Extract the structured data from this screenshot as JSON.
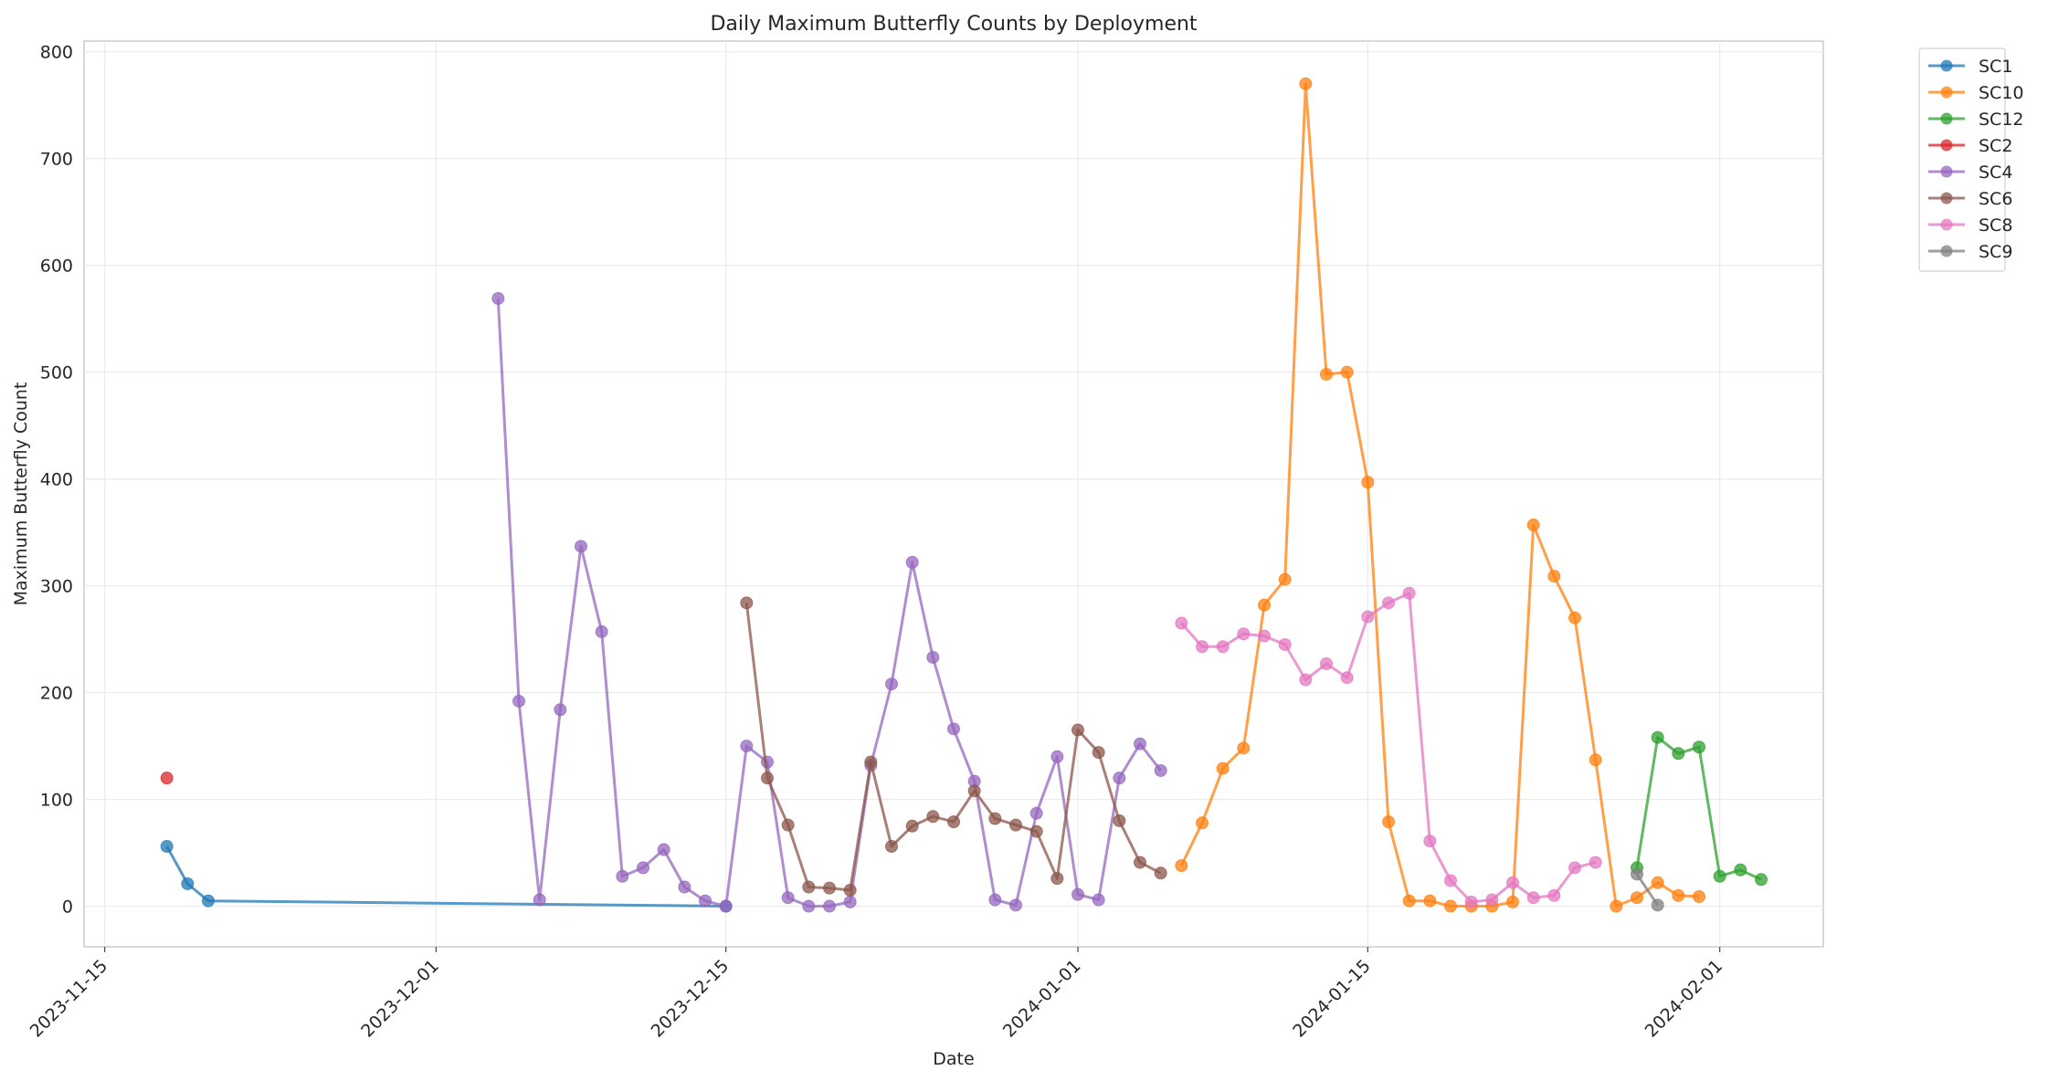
{
  "chart_data": {
    "type": "line",
    "title": "Daily Maximum Butterfly Counts by Deployment",
    "xlabel": "Date",
    "ylabel": "Maximum Butterfly Count",
    "x_type": "date",
    "xlim": [
      "2023-11-14",
      "2024-02-06"
    ],
    "ylim": [
      -38,
      810
    ],
    "y_ticks": [
      0,
      100,
      200,
      300,
      400,
      500,
      600,
      700,
      800
    ],
    "x_ticks": [
      "2023-11-15",
      "2023-12-01",
      "2023-12-15",
      "2024-01-01",
      "2024-01-15",
      "2024-02-01"
    ],
    "grid": true,
    "legend_position": "outside-top-right",
    "marker": "circle",
    "series": [
      {
        "name": "SC1",
        "color": "#1f77b4",
        "points": [
          [
            "2023-11-18",
            56
          ],
          [
            "2023-11-19",
            21
          ],
          [
            "2023-11-20",
            5
          ],
          [
            "2023-12-15",
            0
          ]
        ]
      },
      {
        "name": "SC10",
        "color": "#ff7f0e",
        "points": [
          [
            "2024-01-06",
            38
          ],
          [
            "2024-01-07",
            78
          ],
          [
            "2024-01-08",
            129
          ],
          [
            "2024-01-09",
            148
          ],
          [
            "2024-01-10",
            282
          ],
          [
            "2024-01-11",
            306
          ],
          [
            "2024-01-12",
            770
          ],
          [
            "2024-01-13",
            498
          ],
          [
            "2024-01-14",
            500
          ],
          [
            "2024-01-15",
            397
          ],
          [
            "2024-01-16",
            79
          ],
          [
            "2024-01-17",
            5
          ],
          [
            "2024-01-18",
            5
          ],
          [
            "2024-01-19",
            0
          ],
          [
            "2024-01-20",
            0
          ],
          [
            "2024-01-21",
            0
          ],
          [
            "2024-01-22",
            4
          ],
          [
            "2024-01-23",
            357
          ],
          [
            "2024-01-24",
            309
          ],
          [
            "2024-01-25",
            270
          ],
          [
            "2024-01-26",
            137
          ],
          [
            "2024-01-27",
            0
          ],
          [
            "2024-01-28",
            8
          ],
          [
            "2024-01-29",
            22
          ],
          [
            "2024-01-30",
            10
          ],
          [
            "2024-01-31",
            9
          ]
        ]
      },
      {
        "name": "SC12",
        "color": "#2ca02c",
        "points": [
          [
            "2024-01-28",
            36
          ],
          [
            "2024-01-29",
            158
          ],
          [
            "2024-01-30",
            143
          ],
          [
            "2024-01-31",
            149
          ],
          [
            "2024-02-01",
            28
          ],
          [
            "2024-02-02",
            34
          ],
          [
            "2024-02-03",
            25
          ]
        ]
      },
      {
        "name": "SC2",
        "color": "#d62728",
        "points": [
          [
            "2023-11-18",
            120
          ]
        ]
      },
      {
        "name": "SC4",
        "color": "#9467bd",
        "points": [
          [
            "2023-12-04",
            569
          ],
          [
            "2023-12-05",
            192
          ],
          [
            "2023-12-06",
            6
          ],
          [
            "2023-12-07",
            184
          ],
          [
            "2023-12-08",
            337
          ],
          [
            "2023-12-09",
            257
          ],
          [
            "2023-12-10",
            28
          ],
          [
            "2023-12-11",
            36
          ],
          [
            "2023-12-12",
            53
          ],
          [
            "2023-12-13",
            18
          ],
          [
            "2023-12-14",
            5
          ],
          [
            "2023-12-15",
            0
          ],
          [
            "2023-12-16",
            150
          ],
          [
            "2023-12-17",
            135
          ],
          [
            "2023-12-18",
            8
          ],
          [
            "2023-12-19",
            0
          ],
          [
            "2023-12-20",
            0
          ],
          [
            "2023-12-21",
            4
          ],
          [
            "2023-12-22",
            132
          ],
          [
            "2023-12-23",
            208
          ],
          [
            "2023-12-24",
            322
          ],
          [
            "2023-12-25",
            233
          ],
          [
            "2023-12-26",
            166
          ],
          [
            "2023-12-27",
            117
          ],
          [
            "2023-12-28",
            6
          ],
          [
            "2023-12-29",
            1
          ],
          [
            "2023-12-30",
            87
          ],
          [
            "2023-12-31",
            140
          ],
          [
            "2024-01-01",
            11
          ],
          [
            "2024-01-02",
            6
          ],
          [
            "2024-01-03",
            120
          ],
          [
            "2024-01-04",
            152
          ],
          [
            "2024-01-05",
            127
          ]
        ]
      },
      {
        "name": "SC6",
        "color": "#8c564b",
        "points": [
          [
            "2023-12-16",
            284
          ],
          [
            "2023-12-17",
            120
          ],
          [
            "2023-12-18",
            76
          ],
          [
            "2023-12-19",
            18
          ],
          [
            "2023-12-20",
            17
          ],
          [
            "2023-12-21",
            15
          ],
          [
            "2023-12-22",
            135
          ],
          [
            "2023-12-23",
            56
          ],
          [
            "2023-12-24",
            75
          ],
          [
            "2023-12-25",
            84
          ],
          [
            "2023-12-26",
            79
          ],
          [
            "2023-12-27",
            108
          ],
          [
            "2023-12-28",
            82
          ],
          [
            "2023-12-29",
            76
          ],
          [
            "2023-12-30",
            70
          ],
          [
            "2023-12-31",
            26
          ],
          [
            "2024-01-01",
            165
          ],
          [
            "2024-01-02",
            144
          ],
          [
            "2024-01-03",
            80
          ],
          [
            "2024-01-04",
            41
          ],
          [
            "2024-01-05",
            31
          ]
        ]
      },
      {
        "name": "SC8",
        "color": "#e377c2",
        "points": [
          [
            "2024-01-06",
            265
          ],
          [
            "2024-01-07",
            243
          ],
          [
            "2024-01-08",
            243
          ],
          [
            "2024-01-09",
            255
          ],
          [
            "2024-01-10",
            253
          ],
          [
            "2024-01-11",
            245
          ],
          [
            "2024-01-12",
            212
          ],
          [
            "2024-01-13",
            227
          ],
          [
            "2024-01-14",
            214
          ],
          [
            "2024-01-15",
            271
          ],
          [
            "2024-01-16",
            284
          ],
          [
            "2024-01-17",
            293
          ],
          [
            "2024-01-18",
            61
          ],
          [
            "2024-01-19",
            24
          ],
          [
            "2024-01-20",
            4
          ],
          [
            "2024-01-21",
            6
          ],
          [
            "2024-01-22",
            22
          ],
          [
            "2024-01-23",
            8
          ],
          [
            "2024-01-24",
            10
          ],
          [
            "2024-01-25",
            36
          ],
          [
            "2024-01-26",
            41
          ]
        ]
      },
      {
        "name": "SC9",
        "color": "#7f7f7f",
        "points": [
          [
            "2024-01-28",
            30
          ],
          [
            "2024-01-29",
            1
          ]
        ]
      }
    ]
  }
}
